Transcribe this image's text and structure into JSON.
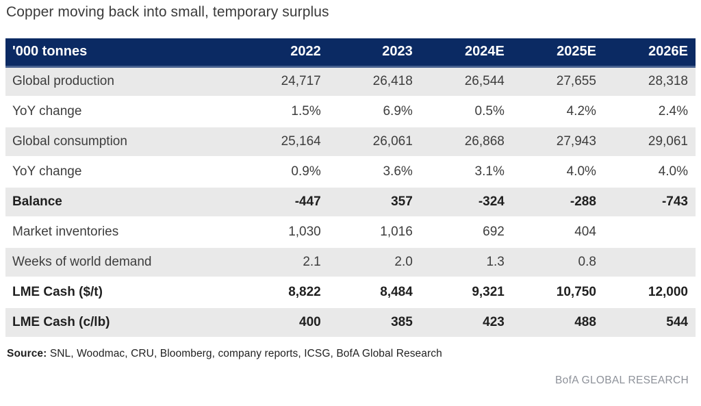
{
  "title": "Copper moving back into small, temporary surplus",
  "table": {
    "header": {
      "label": "'000 tonnes",
      "years": [
        "2022",
        "2023",
        "2024E",
        "2025E",
        "2026E"
      ]
    },
    "rows": [
      {
        "label": "Global production",
        "values": [
          "24,717",
          "26,418",
          "26,544",
          "27,655",
          "28,318"
        ]
      },
      {
        "label": "YoY change",
        "values": [
          "1.5%",
          "6.9%",
          "0.5%",
          "4.2%",
          "2.4%"
        ]
      },
      {
        "label": "Global consumption",
        "values": [
          "25,164",
          "26,061",
          "26,868",
          "27,943",
          "29,061"
        ]
      },
      {
        "label": "YoY change",
        "values": [
          "0.9%",
          "3.6%",
          "3.1%",
          "4.0%",
          "4.0%"
        ]
      },
      {
        "label": "Balance",
        "values": [
          "-447",
          "357",
          "-324",
          "-288",
          "-743"
        ]
      },
      {
        "label": "Market inventories",
        "values": [
          "1,030",
          "1,016",
          "692",
          "404",
          ""
        ]
      },
      {
        "label": "Weeks of world demand",
        "values": [
          "2.1",
          "2.0",
          "1.3",
          "0.8",
          ""
        ]
      },
      {
        "label": "LME Cash ($/t)",
        "values": [
          "8,822",
          "8,484",
          "9,321",
          "10,750",
          "12,000"
        ]
      },
      {
        "label": "LME Cash (c/lb)",
        "values": [
          "400",
          "385",
          "423",
          "488",
          "544"
        ]
      }
    ]
  },
  "source": {
    "label": "Source:",
    "text": " SNL, Woodmac, CRU, Bloomberg, company reports, ICSG, BofA Global Research"
  },
  "footer": "BofA GLOBAL RESEARCH",
  "colors": {
    "header_navy": "#0b2a63",
    "header_underline": "#47618f",
    "row_shade": "#e9e9e9",
    "negative_red": "#ee1c25",
    "footer_gray": "#8d9199"
  },
  "chart_data": {
    "type": "table",
    "title": "Copper moving back into small, temporary surplus",
    "unit": "'000 tonnes",
    "columns": [
      "2022",
      "2023",
      "2024E",
      "2025E",
      "2026E"
    ],
    "rows": [
      {
        "label": "Global production",
        "values": [
          24717,
          26418,
          26544,
          27655,
          28318
        ]
      },
      {
        "label": "YoY change",
        "values": [
          "1.5%",
          "6.9%",
          "0.5%",
          "4.2%",
          "2.4%"
        ]
      },
      {
        "label": "Global consumption",
        "values": [
          25164,
          26061,
          26868,
          27943,
          29061
        ]
      },
      {
        "label": "YoY change",
        "values": [
          "0.9%",
          "3.6%",
          "3.1%",
          "4.0%",
          "4.0%"
        ]
      },
      {
        "label": "Balance",
        "values": [
          -447,
          357,
          -324,
          -288,
          -743
        ]
      },
      {
        "label": "Market inventories",
        "values": [
          1030,
          1016,
          692,
          404,
          null
        ]
      },
      {
        "label": "Weeks of world demand",
        "values": [
          2.1,
          2.0,
          1.3,
          0.8,
          null
        ]
      },
      {
        "label": "LME Cash ($/t)",
        "values": [
          8822,
          8484,
          9321,
          10750,
          12000
        ]
      },
      {
        "label": "LME Cash (c/lb)",
        "values": [
          400,
          385,
          423,
          488,
          544
        ]
      }
    ],
    "notes": "Negative Balance values rendered in red; bold rows: Balance, LME Cash ($/t), LME Cash (c/lb)"
  }
}
